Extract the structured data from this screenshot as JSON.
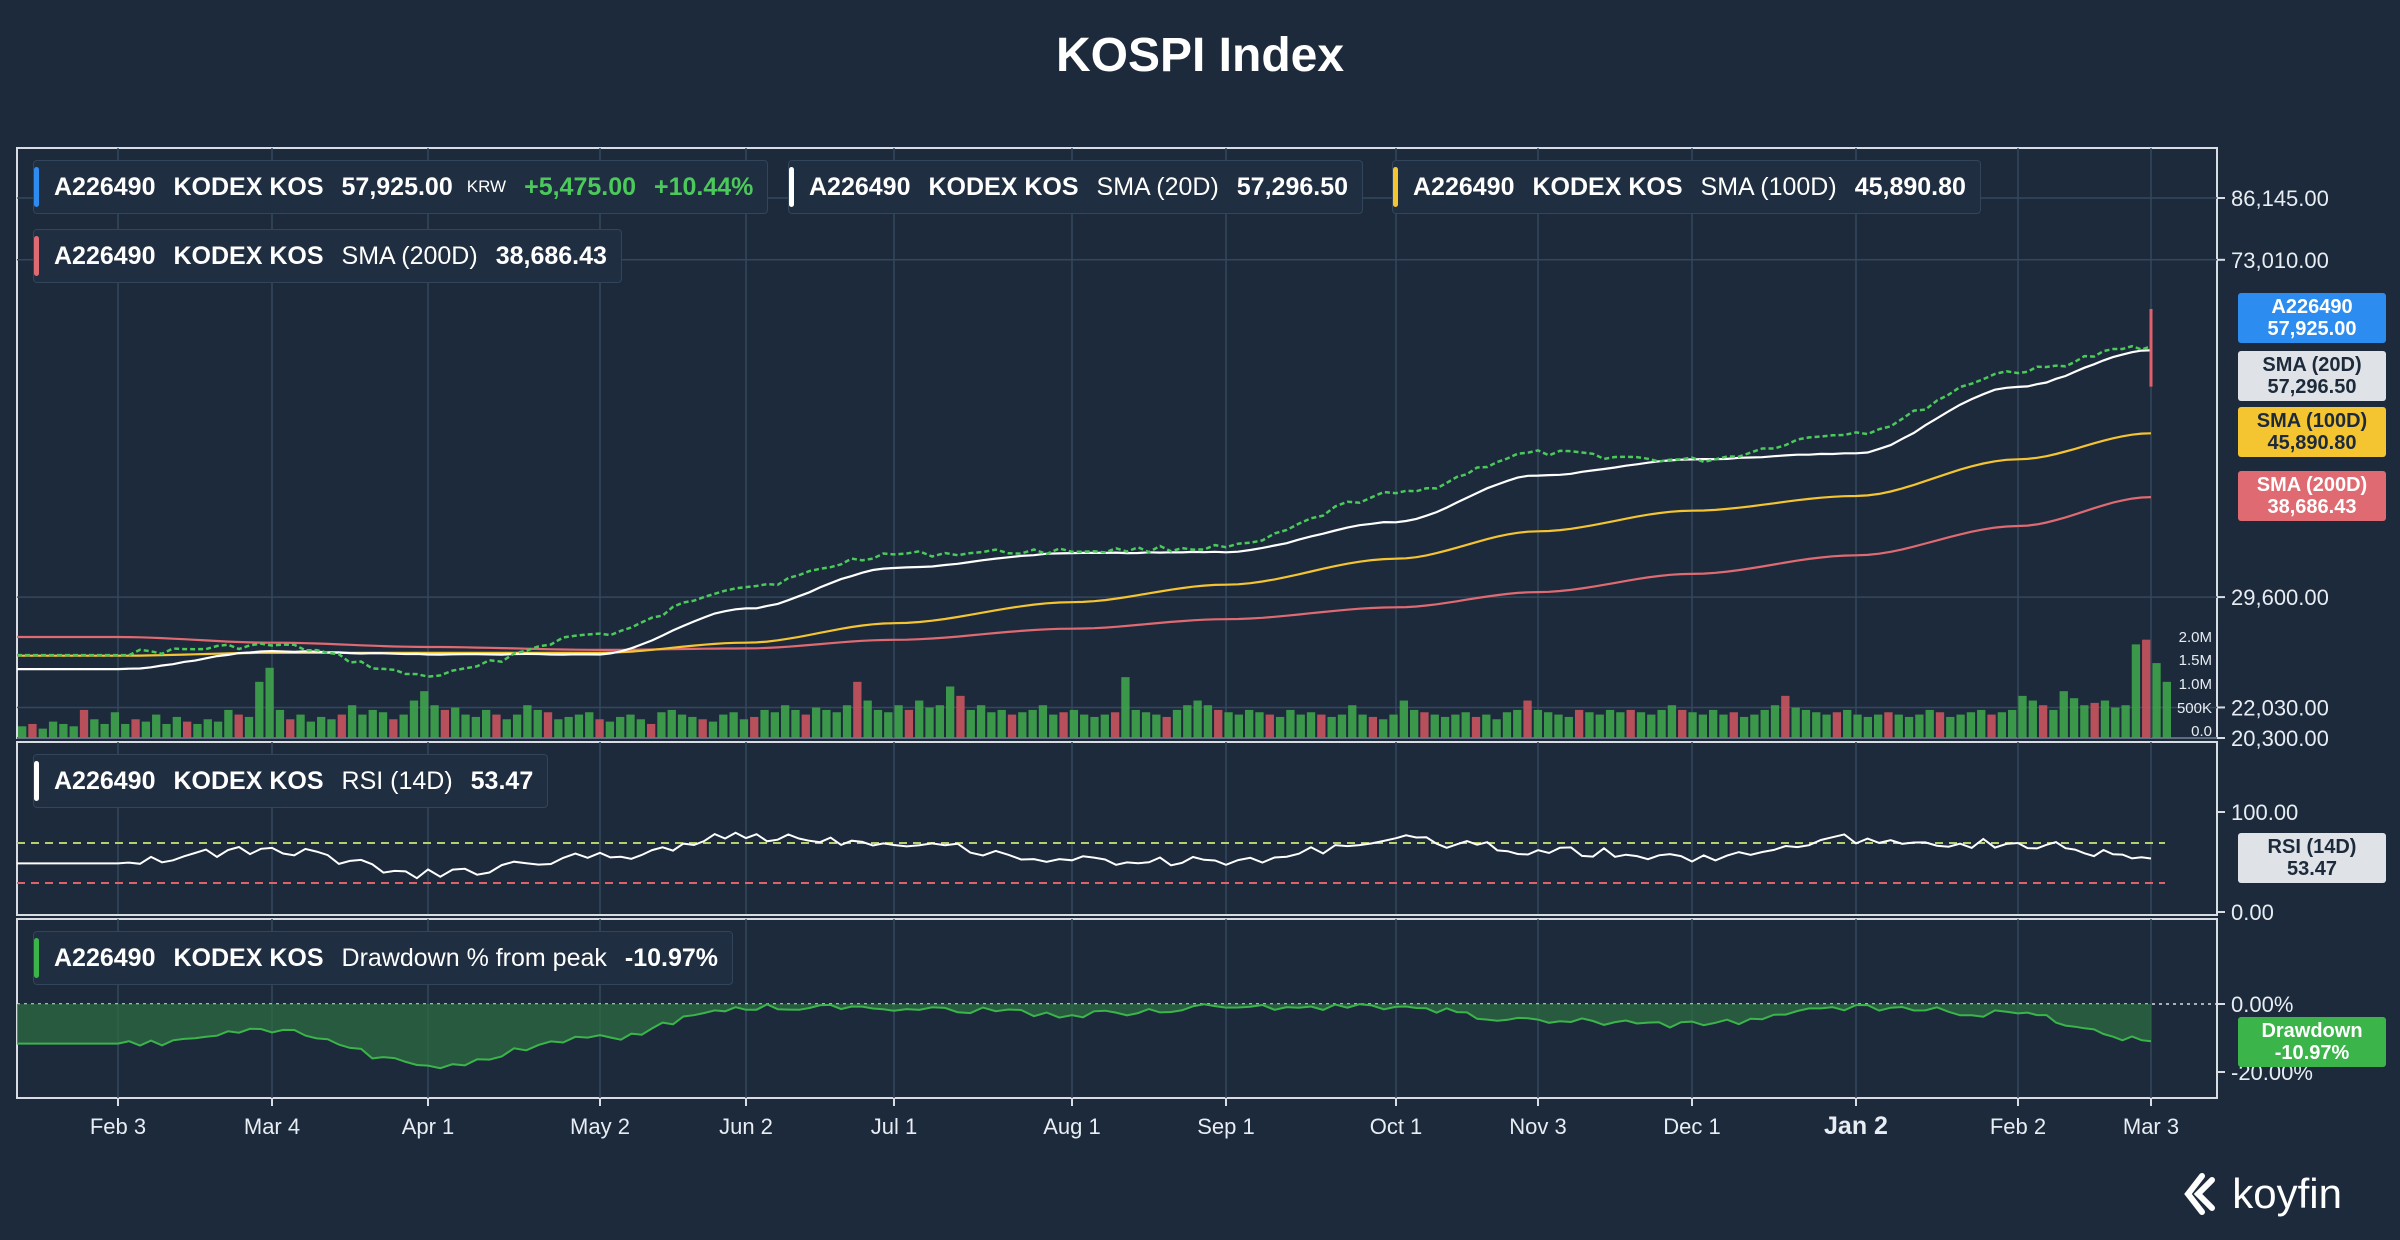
{
  "title": "KOSPI Index",
  "brand": "koyfin",
  "colors": {
    "background": "#1c2a3b",
    "price_up": "#4bc95b",
    "price_down": "#e0616c",
    "sma20": "#ffffff",
    "sma100": "#f4c431",
    "sma200": "#e06a72",
    "accent_blue": "#2d8cf0",
    "drawdown": "#3bb54a"
  },
  "legends": {
    "price": {
      "ticker": "A226490",
      "name": "KODEX KOS",
      "value": "57,925.00",
      "unit": "KRW",
      "change": "+5,475.00",
      "change_pct": "+10.44%"
    },
    "sma20": {
      "ticker": "A226490",
      "name": "KODEX KOS",
      "label": "SMA (20D)",
      "value": "57,296.50"
    },
    "sma100": {
      "ticker": "A226490",
      "name": "KODEX KOS",
      "label": "SMA (100D)",
      "value": "45,890.80"
    },
    "sma200": {
      "ticker": "A226490",
      "name": "KODEX KOS",
      "label": "SMA (200D)",
      "value": "38,686.43"
    },
    "rsi": {
      "ticker": "A226490",
      "name": "KODEX KOS",
      "label": "RSI (14D)",
      "value": "53.47"
    },
    "drawdown": {
      "ticker": "A226490",
      "name": "KODEX KOS",
      "label": "Drawdown % from peak",
      "value": "-10.97%"
    }
  },
  "tags": {
    "price": {
      "line1": "A226490",
      "line2": "57,925.00"
    },
    "sma20": {
      "line1": "SMA (20D)",
      "line2": "57,296.50"
    },
    "sma100": {
      "line1": "SMA (100D)",
      "line2": "45,890.80"
    },
    "sma200": {
      "line1": "SMA (200D)",
      "line2": "38,686.43"
    },
    "rsi": {
      "line1": "RSI (14D)",
      "line2": "53.47"
    },
    "drawdown": {
      "line1": "Drawdown",
      "line2": "-10.97%"
    }
  },
  "chart_data": [
    {
      "type": "line",
      "panel": "price",
      "yscale": "log",
      "ylim": [
        20300,
        86145
      ],
      "yticks": [
        "86,145.00",
        "73,010.00",
        "29,600.00",
        "22,030.00",
        "20,300.00"
      ],
      "xticks": [
        "Feb 3",
        "Mar 4",
        "Apr 1",
        "May 2",
        "Jun 2",
        "Jul 1",
        "Aug 1",
        "Sep 1",
        "Oct 1",
        "Nov 3",
        "Dec 1",
        "Jan 2",
        "Feb 2",
        "Mar 3"
      ],
      "x": [
        "Feb 3",
        "Mar 4",
        "Apr 1",
        "May 2",
        "Jun 2",
        "Jul 1",
        "Aug 1",
        "Sep 1",
        "Oct 1",
        "Nov 3",
        "Dec 1",
        "Jan 2",
        "Feb 2",
        "Mar 3"
      ],
      "series": [
        {
          "name": "A226490 KODEX KOS",
          "values": [
            25500,
            26000,
            24000,
            26800,
            30500,
            33200,
            33500,
            33800,
            39000,
            43500,
            42700,
            46000,
            54200,
            57925
          ]
        },
        {
          "name": "SMA (20D)",
          "values": [
            24400,
            25600,
            25400,
            25400,
            28700,
            32000,
            33300,
            33400,
            36200,
            41000,
            42800,
            43500,
            52000,
            57296.5
          ]
        },
        {
          "name": "SMA (100D)",
          "values": [
            25300,
            25500,
            25500,
            25500,
            26200,
            27600,
            29200,
            30600,
            32800,
            35300,
            37300,
            38800,
            42800,
            45890.8
          ]
        },
        {
          "name": "SMA (200D)",
          "values": [
            26600,
            26200,
            25900,
            25700,
            25800,
            26400,
            27200,
            27900,
            28800,
            30000,
            31500,
            33100,
            35800,
            38686.43
          ]
        }
      ]
    },
    {
      "type": "bar",
      "panel": "volume",
      "yticks": [
        "2.0M",
        "1.5M",
        "1.0M",
        "500K",
        "0.0"
      ],
      "ylim": [
        0,
        2200000
      ],
      "values": [
        0.25,
        0.3,
        0.2,
        0.35,
        0.3,
        0.25,
        0.6,
        0.4,
        0.3,
        0.55,
        0.3,
        0.4,
        0.35,
        0.5,
        0.3,
        0.45,
        0.35,
        0.3,
        0.4,
        0.35,
        0.6,
        0.5,
        0.45,
        1.2,
        1.5,
        0.6,
        0.4,
        0.5,
        0.35,
        0.45,
        0.4,
        0.5,
        0.7,
        0.5,
        0.6,
        0.55,
        0.4,
        0.5,
        0.8,
        1.0,
        0.7,
        0.6,
        0.65,
        0.5,
        0.45,
        0.6,
        0.5,
        0.4,
        0.5,
        0.7,
        0.6,
        0.55,
        0.4,
        0.45,
        0.5,
        0.55,
        0.4,
        0.35,
        0.45,
        0.5,
        0.4,
        0.3,
        0.55,
        0.6,
        0.5,
        0.45,
        0.4,
        0.35,
        0.5,
        0.55,
        0.4,
        0.45,
        0.6,
        0.55,
        0.7,
        0.6,
        0.5,
        0.65,
        0.6,
        0.55,
        0.7,
        1.2,
        0.8,
        0.6,
        0.55,
        0.7,
        0.6,
        0.8,
        0.65,
        0.7,
        1.1,
        0.9,
        0.6,
        0.7,
        0.55,
        0.6,
        0.5,
        0.55,
        0.6,
        0.7,
        0.5,
        0.55,
        0.6,
        0.5,
        0.45,
        0.5,
        0.55,
        1.3,
        0.6,
        0.55,
        0.5,
        0.45,
        0.6,
        0.7,
        0.8,
        0.7,
        0.6,
        0.55,
        0.5,
        0.6,
        0.55,
        0.5,
        0.45,
        0.6,
        0.5,
        0.55,
        0.5,
        0.45,
        0.5,
        0.7,
        0.5,
        0.45,
        0.4,
        0.5,
        0.8,
        0.6,
        0.55,
        0.5,
        0.45,
        0.5,
        0.55,
        0.45,
        0.5,
        0.4,
        0.55,
        0.6,
        0.8,
        0.6,
        0.55,
        0.5,
        0.45,
        0.6,
        0.55,
        0.5,
        0.6,
        0.55,
        0.6,
        0.55,
        0.5,
        0.6,
        0.7,
        0.6,
        0.55,
        0.5,
        0.6,
        0.5,
        0.55,
        0.45,
        0.5,
        0.6,
        0.7,
        0.9,
        0.65,
        0.6,
        0.55,
        0.5,
        0.55,
        0.6,
        0.5,
        0.45,
        0.5,
        0.55,
        0.5,
        0.45,
        0.5,
        0.6,
        0.55,
        0.45,
        0.5,
        0.55,
        0.6,
        0.5,
        0.55,
        0.6,
        0.9,
        0.8,
        0.7,
        0.6,
        1.0,
        0.85,
        0.7,
        0.75,
        0.8,
        0.65,
        0.7,
        2.0,
        2.1,
        1.6,
        1.2
      ]
    },
    {
      "type": "line",
      "panel": "rsi",
      "ylim": [
        0,
        100
      ],
      "yticks": [
        "100.00",
        "0.00"
      ],
      "overbought": 70,
      "oversold": 30,
      "x": [
        "Feb 3",
        "Mar 4",
        "Apr 1",
        "May 2",
        "Jun 2",
        "Jul 1",
        "Aug 1",
        "Sep 1",
        "Oct 1",
        "Nov 3",
        "Dec 1",
        "Jan 2",
        "Feb 2",
        "Mar 3"
      ],
      "series": [
        {
          "name": "RSI (14D)",
          "values": [
            52,
            62,
            38,
            55,
            76,
            70,
            52,
            50,
            72,
            62,
            54,
            73,
            68,
            53.47
          ]
        }
      ]
    },
    {
      "type": "area",
      "panel": "drawdown",
      "ylim": [
        -25,
        5
      ],
      "yticks": [
        "0.00%",
        "-20.00%"
      ],
      "x": [
        "Feb 3",
        "Mar 4",
        "Apr 1",
        "May 2",
        "Jun 2",
        "Jul 1",
        "Aug 1",
        "Sep 1",
        "Oct 1",
        "Nov 3",
        "Dec 1",
        "Jan 2",
        "Feb 2",
        "Mar 3"
      ],
      "series": [
        {
          "name": "Drawdown % from peak",
          "values": [
            -12,
            -8,
            -18,
            -10,
            -1,
            -1,
            -3,
            -1,
            -1,
            -5,
            -6,
            -1,
            -3,
            -10.97
          ]
        }
      ]
    }
  ]
}
